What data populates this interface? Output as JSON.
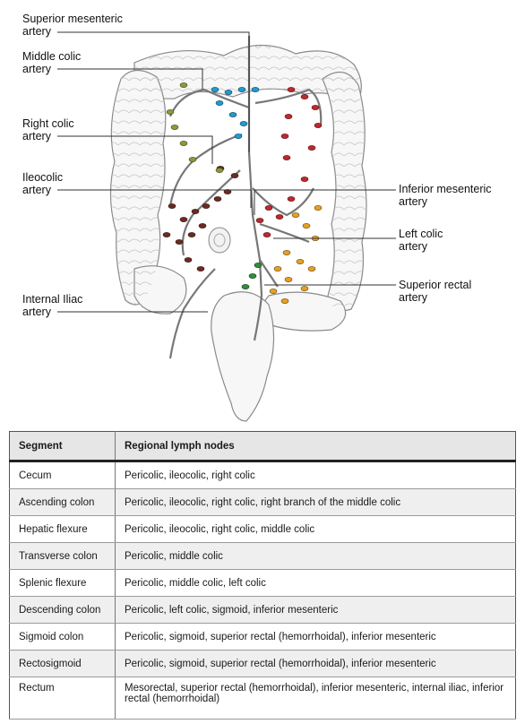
{
  "labels": {
    "superior_mesenteric": "Superior mesenteric\nartery",
    "middle_colic": "Middle colic\nartery",
    "right_colic": "Right colic\nartery",
    "ileocolic": "Ileocolic\nartery",
    "internal_iliac": "Internal Iliac\nartery",
    "inferior_mesenteric": "Inferior mesenteric\nartery",
    "left_colic": "Left colic\nartery",
    "superior_rectal": "Superior rectal\nartery"
  },
  "colors": {
    "node_dark_red": "#6b2a22",
    "node_red": "#c0282d",
    "node_blue": "#1d9bd1",
    "node_orange": "#e8a020",
    "node_green": "#2f8f3a",
    "node_olive": "#8a9a3a",
    "line": "#555555"
  },
  "table": {
    "headers": [
      "Segment",
      "Regional lymph nodes"
    ],
    "rows": [
      {
        "segment": "Cecum",
        "nodes": "Pericolic, ileocolic, right colic"
      },
      {
        "segment": "Ascending colon",
        "nodes": "Pericolic, ileocolic, right colic, right branch of the middle colic"
      },
      {
        "segment": "Hepatic flexure",
        "nodes": "Pericolic, ileocolic, right colic, middle colic"
      },
      {
        "segment": "Transverse colon",
        "nodes": "Pericolic, middle colic"
      },
      {
        "segment": "Splenic flexure",
        "nodes": "Pericolic, middle colic, left colic"
      },
      {
        "segment": "Descending colon",
        "nodes": "Pericolic, left colic, sigmoid, inferior mesenteric"
      },
      {
        "segment": "Sigmoid colon",
        "nodes": "Pericolic, sigmoid, superior rectal (hemorrhoidal), inferior mesenteric"
      },
      {
        "segment": "Rectosigmoid",
        "nodes": "Pericolic, sigmoid, superior rectal (hemorrhoidal), inferior mesenteric"
      },
      {
        "segment": "Rectum",
        "nodes": "Mesorectal, superior rectal (hemorrhoidal), inferior mesenteric, internal iliac, inferior rectal (hemorrhoidal)"
      }
    ]
  }
}
